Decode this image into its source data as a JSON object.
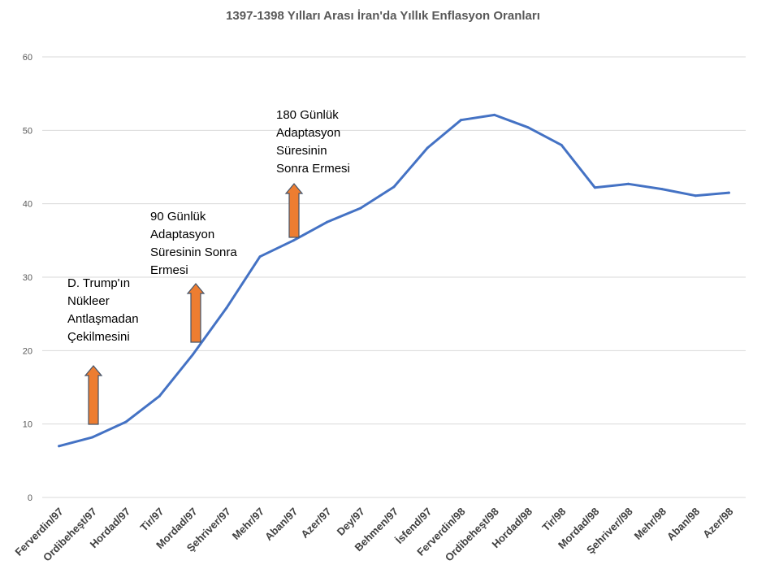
{
  "chart_data": {
    "type": "line",
    "title": "1397-1398 Yılları Arası İran'da Yıllık Enflasyon Oranları",
    "xlabel": "",
    "ylabel": "",
    "ylim": [
      0,
      60
    ],
    "yticks": [
      0,
      10,
      20,
      30,
      40,
      50,
      60
    ],
    "grid": true,
    "categories": [
      "Ferverdin/97",
      "Ordibeheşt/97",
      "Hordad/97",
      "Tir/97",
      "Mordad/97",
      "Şehriver/97",
      "Mehr/97",
      "Aban/97",
      "Azer/97",
      "Dey/97",
      "Behmen/97",
      "İsfend/97",
      "Ferverdin/98",
      "Ordibeheşt/98",
      "Hordad/98",
      "Tir/98",
      "Mordad/98",
      "Şehriver//98",
      "Mehr/98",
      "Aban/98",
      "Azer/98"
    ],
    "series": [
      {
        "values": [
          7.0,
          8.2,
          10.3,
          13.8,
          19.5,
          25.8,
          32.8,
          35.0,
          37.5,
          39.4,
          42.3,
          47.6,
          51.4,
          52.1,
          50.4,
          48.0,
          42.2,
          42.7,
          42.0,
          41.1,
          41.5
        ],
        "color": "#4472C4"
      }
    ],
    "annotations": [
      {
        "text": "D. Trump'ın\nNükleer\nAntlaşmadan\nÇekilmesini",
        "arrow_color": "#ED7D31"
      },
      {
        "text": "90 Günlük\nAdaptasyon\nSüresinin Sonra\nErmesi",
        "arrow_color": "#ED7D31"
      },
      {
        "text": "180 Günlük\nAdaptasyon\nSüresinin\nSonra Ermesi",
        "arrow_color": "#ED7D31"
      }
    ]
  }
}
